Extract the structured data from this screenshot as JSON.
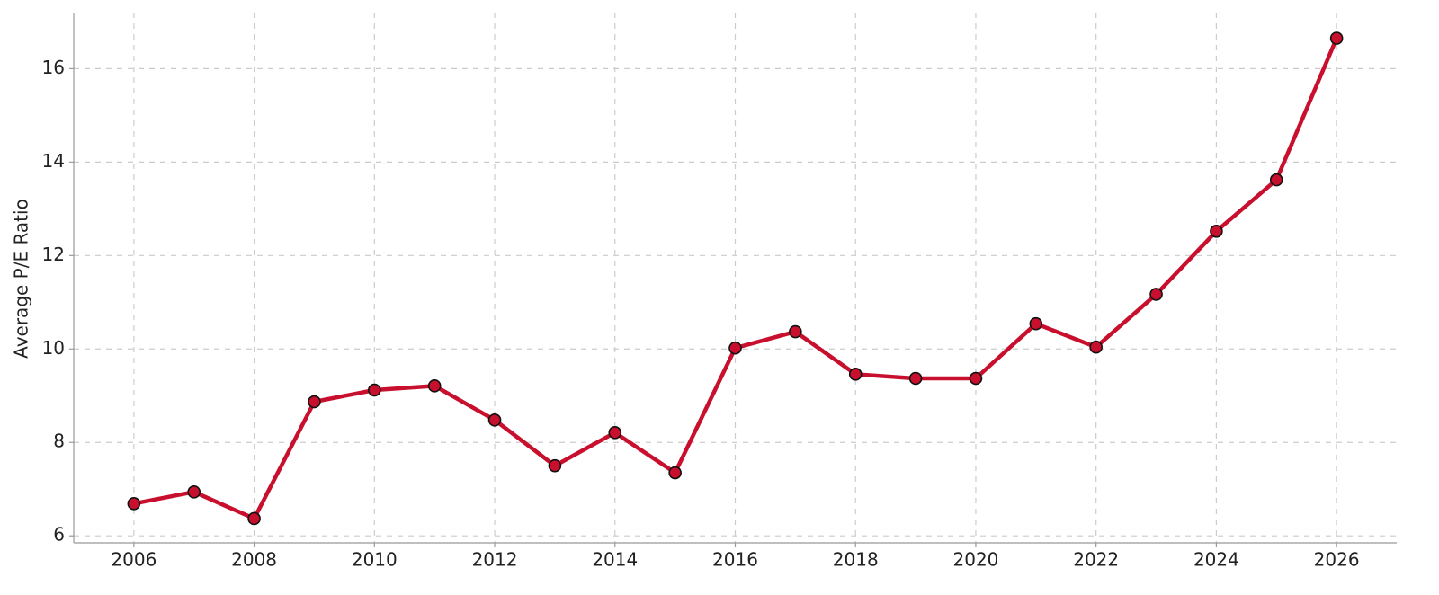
{
  "chart_data": {
    "type": "line",
    "y_label": "Average P/E Ratio",
    "x": [
      2006,
      2007,
      2008,
      2009,
      2010,
      2011,
      2012,
      2013,
      2014,
      2015,
      2016,
      2017,
      2018,
      2019,
      2020,
      2021,
      2022,
      2023,
      2024,
      2025,
      2026
    ],
    "series": [
      {
        "color": "#c8102e",
        "values": [
          6.69,
          6.94,
          6.37,
          8.87,
          9.12,
          9.21,
          8.48,
          7.5,
          8.21,
          7.35,
          10.02,
          10.37,
          9.46,
          9.37,
          9.37,
          10.54,
          10.04,
          11.17,
          12.52,
          13.62,
          16.65
        ]
      }
    ],
    "xlim": [
      2005,
      2027
    ],
    "xticks": [
      2006,
      2008,
      2010,
      2012,
      2014,
      2016,
      2018,
      2020,
      2022,
      2024,
      2026
    ],
    "ylim": [
      5.85,
      17.2
    ],
    "yticks": [
      6,
      8,
      10,
      12,
      14,
      16
    ],
    "grid": true
  }
}
